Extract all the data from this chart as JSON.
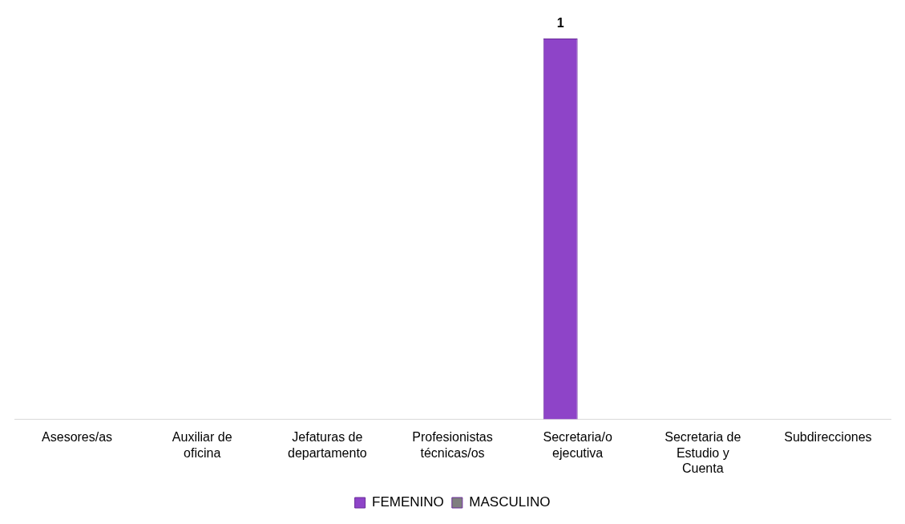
{
  "chart_data": {
    "type": "bar",
    "categories": [
      "Asesores/as",
      "Auxiliar de oficina",
      "Jefaturas de departamento",
      "Profesionistas técnicas/os",
      "Secretaria/o ejecutiva",
      "Secretaria de Estudio y Cuenta",
      "Subdirecciones"
    ],
    "series": [
      {
        "name": "FEMENINO",
        "color": "#8e44c8",
        "values": [
          null,
          null,
          null,
          null,
          1,
          null,
          null
        ]
      },
      {
        "name": "MASCULINO",
        "color": "#7f7f7f",
        "values": [
          null,
          null,
          null,
          null,
          null,
          null,
          null
        ]
      }
    ],
    "data_labels": true,
    "legend": "bottom",
    "grid": false
  }
}
